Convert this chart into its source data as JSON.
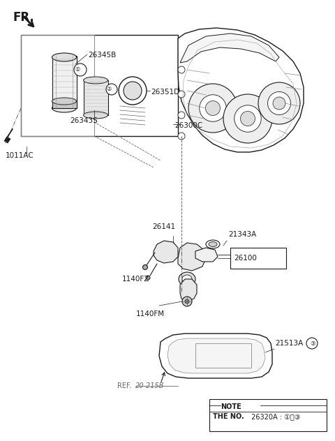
{
  "bg_color": "#ffffff",
  "line_color": "#1a1a1a",
  "note_line1": "NOTE",
  "note_line2_bold": "THE NO.",
  "note_line2_rest": " 26320A : ①−③",
  "ref_text": "REF.",
  "ref_underline": "20-215B"
}
